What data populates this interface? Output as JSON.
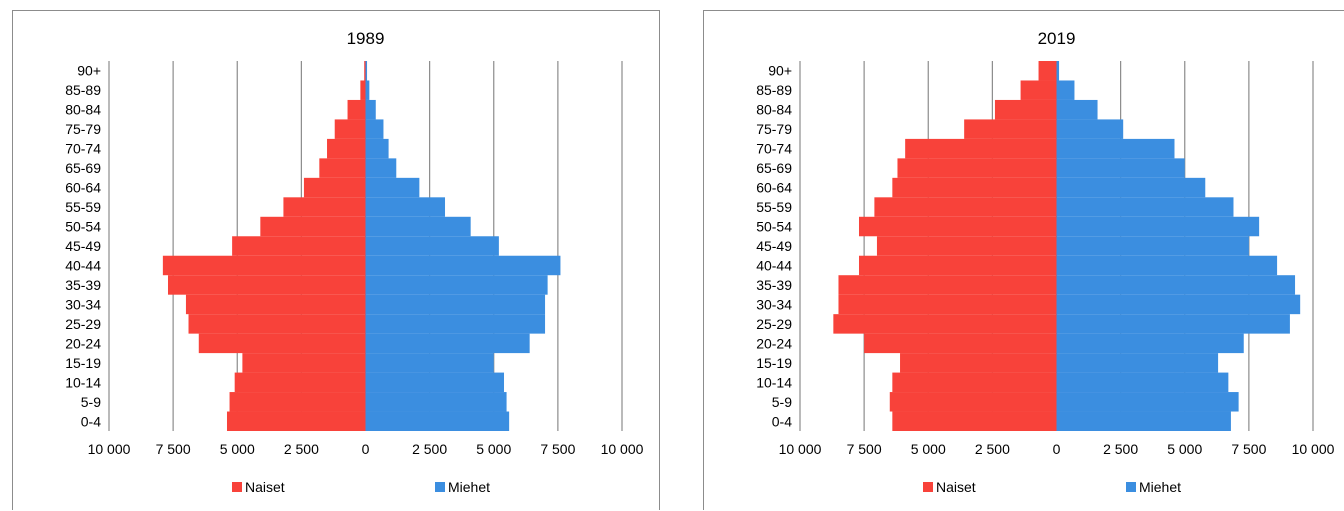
{
  "colors": {
    "women": "#f8423a",
    "men": "#3b8ee0",
    "grid": "#8c8c8c"
  },
  "chart_data": [
    {
      "type": "bar",
      "subtype": "population-pyramid",
      "title": "1989",
      "categories": [
        "0-4",
        "5-9",
        "10-14",
        "15-19",
        "20-24",
        "25-29",
        "30-34",
        "35-39",
        "40-44",
        "45-49",
        "50-54",
        "55-59",
        "60-64",
        "65-69",
        "70-74",
        "75-79",
        "80-84",
        "85-89",
        "90+"
      ],
      "series": [
        {
          "name": "Naiset",
          "values": [
            5400,
            5300,
            5100,
            4800,
            6500,
            6900,
            7000,
            7700,
            7900,
            5200,
            4100,
            3200,
            2400,
            1800,
            1500,
            1200,
            700,
            200,
            50
          ]
        },
        {
          "name": "Miehet",
          "values": [
            5600,
            5500,
            5400,
            5000,
            6400,
            7000,
            7000,
            7100,
            7600,
            5200,
            4100,
            3100,
            2100,
            1200,
            900,
            700,
            400,
            150,
            60
          ]
        }
      ],
      "xlim": [
        -10000,
        10000
      ],
      "xticks": [
        "10 000",
        "7 500",
        "5 000",
        "2 500",
        "0",
        "2 500",
        "5 000",
        "7 500",
        "10 000"
      ],
      "grid": true,
      "legend": "bottom"
    },
    {
      "type": "bar",
      "subtype": "population-pyramid",
      "title": "2019",
      "categories": [
        "0-4",
        "5-9",
        "10-14",
        "15-19",
        "20-24",
        "25-29",
        "30-34",
        "35-39",
        "40-44",
        "45-49",
        "50-54",
        "55-59",
        "60-64",
        "65-69",
        "70-74",
        "75-79",
        "80-84",
        "85-89",
        "90+"
      ],
      "series": [
        {
          "name": "Naiset",
          "values": [
            6400,
            6500,
            6400,
            6100,
            7500,
            8700,
            8500,
            8500,
            7700,
            7000,
            7700,
            7100,
            6400,
            6200,
            5900,
            3600,
            2400,
            1400,
            700
          ]
        },
        {
          "name": "Miehet",
          "values": [
            6800,
            7100,
            6700,
            6300,
            7300,
            9100,
            9500,
            9300,
            8600,
            7500,
            7900,
            6900,
            5800,
            5000,
            4600,
            2600,
            1600,
            700,
            100
          ]
        }
      ],
      "xlim": [
        -10000,
        10000
      ],
      "xticks": [
        "10 000",
        "7 500",
        "5 000",
        "2 500",
        "0",
        "2 500",
        "5 000",
        "7 500",
        "10 000"
      ],
      "grid": true,
      "legend": "bottom"
    }
  ]
}
